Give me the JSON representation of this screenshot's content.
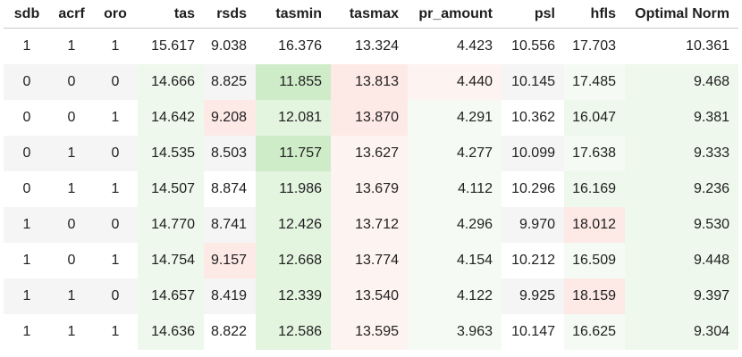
{
  "table": {
    "headers": [
      "sdb",
      "acrf",
      "oro",
      "tas",
      "rsds",
      "tasmin",
      "tasmax",
      "pr_amount",
      "psl",
      "hfls",
      "Optimal Norm"
    ],
    "rows": [
      [
        "1",
        "1",
        "1",
        "15.617",
        "9.038",
        "16.376",
        "13.324",
        "4.423",
        "10.556",
        "17.703",
        "10.361"
      ],
      [
        "0",
        "0",
        "0",
        "14.666",
        "8.825",
        "11.855",
        "13.813",
        "4.440",
        "10.145",
        "17.485",
        "9.468"
      ],
      [
        "0",
        "0",
        "1",
        "14.642",
        "9.208",
        "12.081",
        "13.870",
        "4.291",
        "10.362",
        "16.047",
        "9.381"
      ],
      [
        "0",
        "1",
        "0",
        "14.535",
        "8.503",
        "11.757",
        "13.627",
        "4.277",
        "10.099",
        "17.638",
        "9.333"
      ],
      [
        "0",
        "1",
        "1",
        "14.507",
        "8.874",
        "11.986",
        "13.679",
        "4.112",
        "10.296",
        "16.169",
        "9.236"
      ],
      [
        "1",
        "0",
        "0",
        "14.770",
        "8.741",
        "12.426",
        "13.712",
        "4.296",
        "9.970",
        "18.012",
        "9.530"
      ],
      [
        "1",
        "0",
        "1",
        "14.754",
        "9.157",
        "12.668",
        "13.774",
        "4.154",
        "10.212",
        "16.509",
        "9.448"
      ],
      [
        "1",
        "1",
        "0",
        "14.657",
        "8.419",
        "12.339",
        "13.540",
        "4.122",
        "9.925",
        "18.159",
        "9.397"
      ],
      [
        "1",
        "1",
        "1",
        "14.636",
        "8.822",
        "12.586",
        "13.595",
        "3.963",
        "10.147",
        "16.625",
        "9.304"
      ]
    ]
  },
  "colors": {
    "green_strong": "#cfecc9",
    "green_mid": "#e3f4df",
    "green_light": "#eef8ec",
    "green_faint": "#f5fbf4",
    "red_light": "#fde9e6",
    "red_faint": "#fdf3f1",
    "zebra": "#f5f5f5"
  },
  "cell_colors": [
    [
      "",
      "",
      "",
      "",
      "",
      "",
      "",
      "",
      "",
      "",
      ""
    ],
    [
      "",
      "",
      "",
      "green_light",
      "",
      "green_strong",
      "red_light",
      "red_faint",
      "",
      "green_faint",
      "green_light"
    ],
    [
      "",
      "",
      "",
      "green_light",
      "red_light",
      "green_mid",
      "red_light",
      "green_faint",
      "",
      "green_light",
      "green_light"
    ],
    [
      "",
      "",
      "",
      "green_light",
      "",
      "green_strong",
      "red_faint",
      "green_faint",
      "",
      "green_faint",
      "green_light"
    ],
    [
      "",
      "",
      "",
      "green_light",
      "",
      "green_mid",
      "red_faint",
      "green_faint",
      "",
      "green_light",
      "green_light"
    ],
    [
      "",
      "",
      "",
      "green_light",
      "",
      "green_mid",
      "red_faint",
      "green_faint",
      "",
      "red_light",
      "green_light"
    ],
    [
      "",
      "",
      "",
      "green_light",
      "red_light",
      "green_mid",
      "red_faint",
      "green_faint",
      "",
      "green_faint",
      "green_light"
    ],
    [
      "",
      "",
      "",
      "green_light",
      "",
      "green_mid",
      "red_faint",
      "green_faint",
      "",
      "red_light",
      "green_light"
    ],
    [
      "",
      "",
      "",
      "green_light",
      "",
      "green_mid",
      "red_faint",
      "green_faint",
      "",
      "green_faint",
      "green_light"
    ]
  ]
}
